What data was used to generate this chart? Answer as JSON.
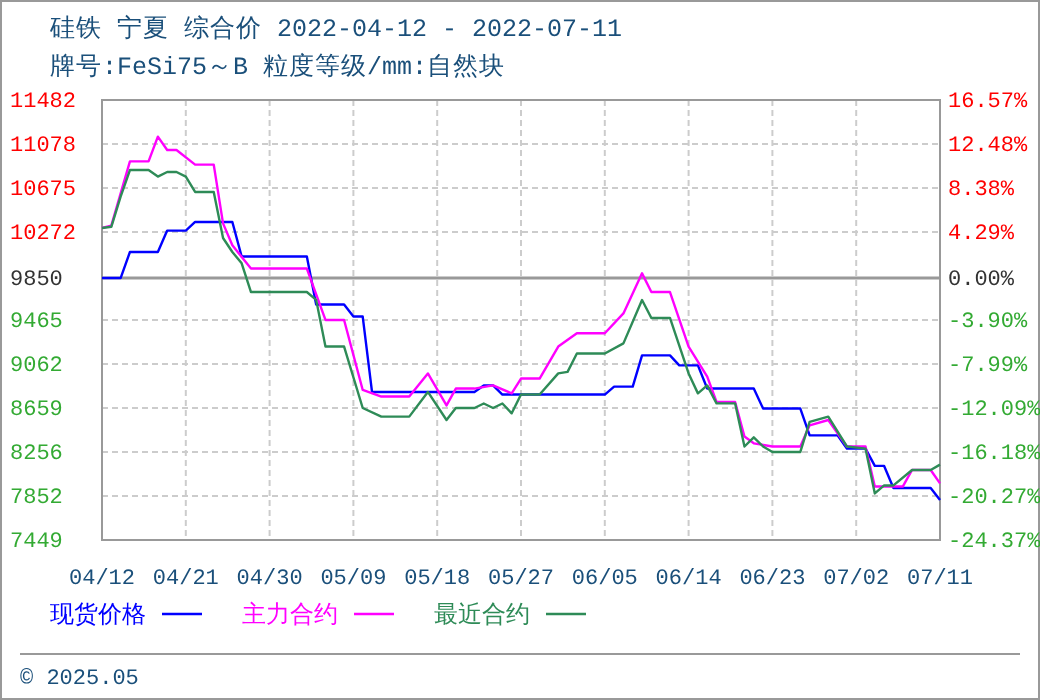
{
  "chart_data": {
    "type": "line",
    "title": "硅铁 宁夏 综合价 2022-04-12 - 2022-07-11",
    "subtitle": "牌号:FeSi75～B 粒度等级/mm:自然块",
    "annotations": [
      "© 2025.05"
    ],
    "xlim": [
      "2022-04-12",
      "2022-07-11"
    ],
    "xticks": [
      {
        "value": "2022-04-12",
        "label": "04/12"
      },
      {
        "value": "2022-04-21",
        "label": "04/21"
      },
      {
        "value": "2022-04-30",
        "label": "04/30"
      },
      {
        "value": "2022-05-09",
        "label": "05/09"
      },
      {
        "value": "2022-05-18",
        "label": "05/18"
      },
      {
        "value": "2022-05-27",
        "label": "05/27"
      },
      {
        "value": "2022-06-05",
        "label": "06/05"
      },
      {
        "value": "2022-06-14",
        "label": "06/14"
      },
      {
        "value": "2022-06-23",
        "label": "06/23"
      },
      {
        "value": "2022-07-02",
        "label": "07/02"
      },
      {
        "value": "2022-07-11",
        "label": "07/11"
      }
    ],
    "ylim": [
      7449,
      11482
    ],
    "yticks": [
      7449,
      7852,
      8256,
      8659,
      9062,
      9465,
      9850,
      10272,
      10675,
      11078,
      11482
    ],
    "y2lim": [
      -24.37,
      16.57
    ],
    "y2ticks": [
      {
        "value": -24.37,
        "label": "-24.37%"
      },
      {
        "value": -20.27,
        "label": "-20.27%"
      },
      {
        "value": -16.18,
        "label": "-16.18%"
      },
      {
        "value": -12.09,
        "label": "-12.09%"
      },
      {
        "value": -7.99,
        "label": "-7.99%"
      },
      {
        "value": -3.9,
        "label": "-3.90%"
      },
      {
        "value": 0,
        "label": "0.00%"
      },
      {
        "value": 4.29,
        "label": "4.29%"
      },
      {
        "value": 8.38,
        "label": "8.38%"
      },
      {
        "value": 12.48,
        "label": "12.48%"
      },
      {
        "value": 16.57,
        "label": "16.57%"
      }
    ],
    "ref_lines": [
      {
        "axis": "y",
        "value": 9850,
        "color": "#999999"
      }
    ],
    "grid": true,
    "legend": "bottom",
    "line_style": "solid",
    "marker": "none",
    "series": [
      {
        "name": "现货价格",
        "color": "#0000ff",
        "x": [
          "2022-04-12",
          "2022-04-14",
          "2022-04-15",
          "2022-04-18",
          "2022-04-19",
          "2022-04-21",
          "2022-04-22",
          "2022-04-26",
          "2022-04-27",
          "2022-05-04",
          "2022-05-05",
          "2022-05-08",
          "2022-05-09",
          "2022-05-10",
          "2022-05-11",
          "2022-05-22",
          "2022-05-23",
          "2022-05-24",
          "2022-05-25",
          "2022-06-05",
          "2022-06-06",
          "2022-06-08",
          "2022-06-09",
          "2022-06-12",
          "2022-06-13",
          "2022-06-15",
          "2022-06-16",
          "2022-06-21",
          "2022-06-22",
          "2022-06-26",
          "2022-06-27",
          "2022-06-30",
          "2022-07-01",
          "2022-07-03",
          "2022-07-04",
          "2022-07-05",
          "2022-07-06",
          "2022-07-10",
          "2022-07-11"
        ],
        "values": [
          9850,
          9850,
          10089,
          10089,
          10285,
          10285,
          10364,
          10364,
          10047,
          10047,
          9607,
          9607,
          9497,
          9497,
          8806,
          8806,
          8866,
          8866,
          8782,
          8782,
          8855,
          8855,
          9141,
          9141,
          9050,
          9050,
          8837,
          8837,
          8654,
          8654,
          8408,
          8408,
          8287,
          8287,
          8128,
          8128,
          7926,
          7926,
          7816
        ]
      },
      {
        "name": "主力合约",
        "color": "#ff00ff",
        "x": [
          "2022-04-12",
          "2022-04-13",
          "2022-04-15",
          "2022-04-17",
          "2022-04-18",
          "2022-04-19",
          "2022-04-20",
          "2022-04-22",
          "2022-04-24",
          "2022-04-25",
          "2022-04-26",
          "2022-04-28",
          "2022-05-04",
          "2022-05-06",
          "2022-05-08",
          "2022-05-10",
          "2022-05-12",
          "2022-05-15",
          "2022-05-17",
          "2022-05-19",
          "2022-05-20",
          "2022-05-22",
          "2022-05-24",
          "2022-05-26",
          "2022-05-27",
          "2022-05-29",
          "2022-05-31",
          "2022-06-02",
          "2022-06-05",
          "2022-06-07",
          "2022-06-09",
          "2022-06-10",
          "2022-06-12",
          "2022-06-14",
          "2022-06-16",
          "2022-06-17",
          "2022-06-19",
          "2022-06-20",
          "2022-06-21",
          "2022-06-23",
          "2022-06-26",
          "2022-06-27",
          "2022-06-29",
          "2022-07-01",
          "2022-07-03",
          "2022-07-04",
          "2022-07-06",
          "2022-07-07",
          "2022-07-08",
          "2022-07-10",
          "2022-07-11"
        ],
        "values": [
          10309,
          10330,
          10919,
          10919,
          11146,
          11024,
          11024,
          10890,
          10890,
          10351,
          10150,
          9937,
          9937,
          9466,
          9466,
          8824,
          8764,
          8764,
          8976,
          8683,
          8837,
          8837,
          8866,
          8793,
          8929,
          8929,
          9222,
          9344,
          9344,
          9526,
          9893,
          9722,
          9722,
          9222,
          8947,
          8714,
          8714,
          8397,
          8335,
          8306,
          8306,
          8500,
          8549,
          8306,
          8306,
          7939,
          7939,
          7939,
          8091,
          8091,
          7968
        ]
      },
      {
        "name": "最近合约",
        "color": "#2e8b57",
        "x": [
          "2022-04-12",
          "2022-04-13",
          "2022-04-14",
          "2022-04-15",
          "2022-04-17",
          "2022-04-18",
          "2022-04-19",
          "2022-04-20",
          "2022-04-21",
          "2022-04-22",
          "2022-04-24",
          "2022-04-25",
          "2022-04-26",
          "2022-04-27",
          "2022-04-28",
          "2022-05-04",
          "2022-05-05",
          "2022-05-06",
          "2022-05-08",
          "2022-05-10",
          "2022-05-12",
          "2022-05-15",
          "2022-05-17",
          "2022-05-19",
          "2022-05-20",
          "2022-05-22",
          "2022-05-23",
          "2022-05-24",
          "2022-05-25",
          "2022-05-26",
          "2022-05-27",
          "2022-05-29",
          "2022-05-31",
          "2022-06-01",
          "2022-06-02",
          "2022-06-05",
          "2022-06-07",
          "2022-06-09",
          "2022-06-10",
          "2022-06-12",
          "2022-06-14",
          "2022-06-15",
          "2022-06-16",
          "2022-06-17",
          "2022-06-19",
          "2022-06-20",
          "2022-06-21",
          "2022-06-22",
          "2022-06-23",
          "2022-06-26",
          "2022-06-27",
          "2022-06-29",
          "2022-07-01",
          "2022-07-03",
          "2022-07-04",
          "2022-07-05",
          "2022-07-06",
          "2022-07-08",
          "2022-07-10",
          "2022-07-11"
        ],
        "values": [
          10309,
          10320,
          10597,
          10840,
          10840,
          10780,
          10822,
          10822,
          10780,
          10639,
          10639,
          10217,
          10089,
          9985,
          9722,
          9722,
          9650,
          9222,
          9222,
          8659,
          8580,
          8580,
          8806,
          8549,
          8659,
          8659,
          8700,
          8659,
          8700,
          8610,
          8782,
          8782,
          8976,
          8990,
          9159,
          9159,
          9251,
          9649,
          9484,
          9484,
          8976,
          8793,
          8866,
          8701,
          8701,
          8306,
          8390,
          8306,
          8256,
          8256,
          8531,
          8580,
          8306,
          8287,
          7876,
          7949,
          7949,
          8091,
          8091,
          8140
        ]
      }
    ]
  }
}
